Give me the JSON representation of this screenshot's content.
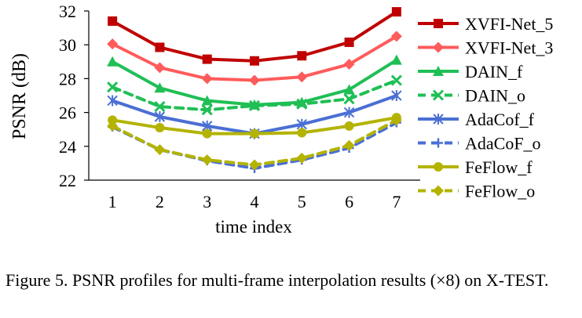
{
  "chart_data": {
    "type": "line",
    "xlabel": "time index",
    "ylabel": "PSNR (dB)",
    "x": [
      1,
      2,
      3,
      4,
      5,
      6,
      7
    ],
    "ylim": [
      22,
      32
    ],
    "yticks": [
      22,
      24,
      26,
      28,
      30,
      32
    ],
    "grid": false,
    "legend": "right",
    "series": [
      {
        "name": "XVFI-Net_5",
        "color": "#c00000",
        "dash": false,
        "marker": "square",
        "values": [
          31.4,
          29.85,
          29.15,
          29.05,
          29.35,
          30.15,
          31.95
        ]
      },
      {
        "name": "XVFI-Net_3",
        "color": "#ff5b5b",
        "dash": false,
        "marker": "diamond",
        "values": [
          30.05,
          28.65,
          28.0,
          27.9,
          28.1,
          28.85,
          30.5
        ]
      },
      {
        "name": "DAIN_f",
        "color": "#1fbf55",
        "dash": false,
        "marker": "triangle",
        "values": [
          29.0,
          27.45,
          26.7,
          26.45,
          26.6,
          27.35,
          29.1
        ]
      },
      {
        "name": "DAIN_o",
        "color": "#1fbf55",
        "dash": true,
        "marker": "x",
        "values": [
          27.5,
          26.35,
          26.15,
          26.4,
          26.5,
          26.8,
          27.9
        ]
      },
      {
        "name": "AdaCof_f",
        "color": "#4a6fd4",
        "dash": false,
        "marker": "asterisk",
        "values": [
          26.7,
          25.75,
          25.2,
          24.75,
          25.3,
          26.0,
          27.0
        ]
      },
      {
        "name": "AdaCoF_o",
        "color": "#4a6fd4",
        "dash": true,
        "marker": "plus",
        "values": [
          25.15,
          23.8,
          23.15,
          22.7,
          23.2,
          23.9,
          25.4
        ]
      },
      {
        "name": "FeFlow_f",
        "color": "#b3b300",
        "dash": false,
        "marker": "circle",
        "values": [
          25.55,
          25.1,
          24.75,
          24.75,
          24.8,
          25.2,
          25.7
        ]
      },
      {
        "name": "FeFlow_o",
        "color": "#b3b300",
        "dash": true,
        "marker": "diamond",
        "values": [
          25.2,
          23.8,
          23.2,
          22.9,
          23.3,
          24.05,
          25.55
        ]
      }
    ]
  },
  "caption": "Figure 5. PSNR profiles for multi-frame interpolation results (×8) on X-TEST."
}
